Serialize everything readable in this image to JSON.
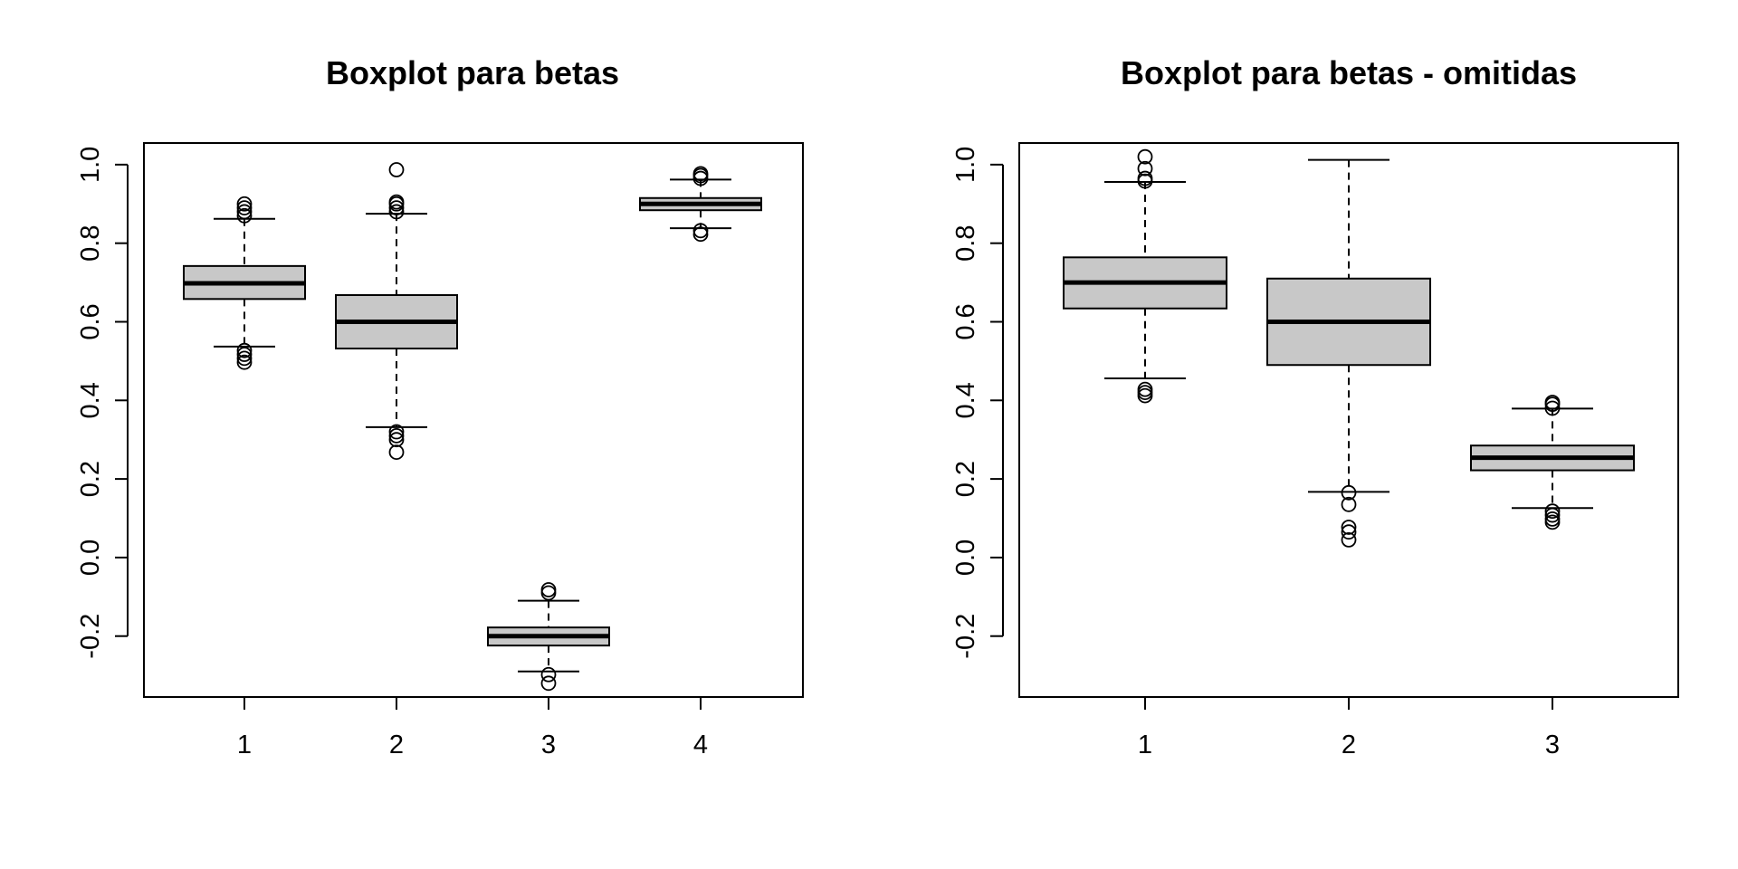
{
  "chart_data": [
    {
      "type": "boxplot",
      "title": "Boxplot para betas",
      "xlabel": "",
      "ylabel": "",
      "categories": [
        "1",
        "2",
        "3",
        "4"
      ],
      "y_ticks": [
        "-0.2",
        "0.0",
        "0.2",
        "0.4",
        "0.6",
        "0.8",
        "1.0"
      ],
      "ylim": [
        -0.355,
        1.055
      ],
      "boxes": [
        {
          "category": "1",
          "whisker_low": 0.537,
          "q1": 0.658,
          "median": 0.698,
          "q3": 0.742,
          "whisker_high": 0.862,
          "outliers": [
            0.497,
            0.507,
            0.517,
            0.527,
            0.87,
            0.88,
            0.89,
            0.9
          ]
        },
        {
          "category": "2",
          "whisker_low": 0.332,
          "q1": 0.532,
          "median": 0.6,
          "q3": 0.668,
          "whisker_high": 0.875,
          "outliers": [
            0.268,
            0.3,
            0.31,
            0.32,
            0.88,
            0.89,
            0.9,
            0.905,
            0.987
          ]
        },
        {
          "category": "3",
          "whisker_low": -0.29,
          "q1": -0.224,
          "median": -0.2,
          "q3": -0.178,
          "whisker_high": -0.11,
          "outliers": [
            -0.32,
            -0.298,
            -0.09,
            -0.082
          ]
        },
        {
          "category": "4",
          "whisker_low": 0.838,
          "q1": 0.884,
          "median": 0.9,
          "q3": 0.915,
          "whisker_high": 0.962,
          "outliers": [
            0.823,
            0.832,
            0.965,
            0.972,
            0.977
          ]
        }
      ]
    },
    {
      "type": "boxplot",
      "title": "Boxplot para betas - omitidas",
      "xlabel": "",
      "ylabel": "",
      "categories": [
        "1",
        "2",
        "3"
      ],
      "y_ticks": [
        "-0.2",
        "0.0",
        "0.2",
        "0.4",
        "0.6",
        "0.8",
        "1.0"
      ],
      "ylim": [
        -0.355,
        1.055
      ],
      "boxes": [
        {
          "category": "1",
          "whisker_low": 0.456,
          "q1": 0.634,
          "median": 0.7,
          "q3": 0.764,
          "whisker_high": 0.956,
          "outliers": [
            0.412,
            0.42,
            0.428,
            0.958,
            0.965,
            0.99,
            1.02
          ]
        },
        {
          "category": "2",
          "whisker_low": 0.167,
          "q1": 0.49,
          "median": 0.6,
          "q3": 0.71,
          "whisker_high": 1.012,
          "outliers": [
            0.045,
            0.065,
            0.077,
            0.135,
            0.165
          ]
        },
        {
          "category": "3",
          "whisker_low": 0.126,
          "q1": 0.222,
          "median": 0.254,
          "q3": 0.285,
          "whisker_high": 0.379,
          "outliers": [
            0.09,
            0.098,
            0.108,
            0.118,
            0.38,
            0.39,
            0.395
          ]
        }
      ]
    }
  ]
}
